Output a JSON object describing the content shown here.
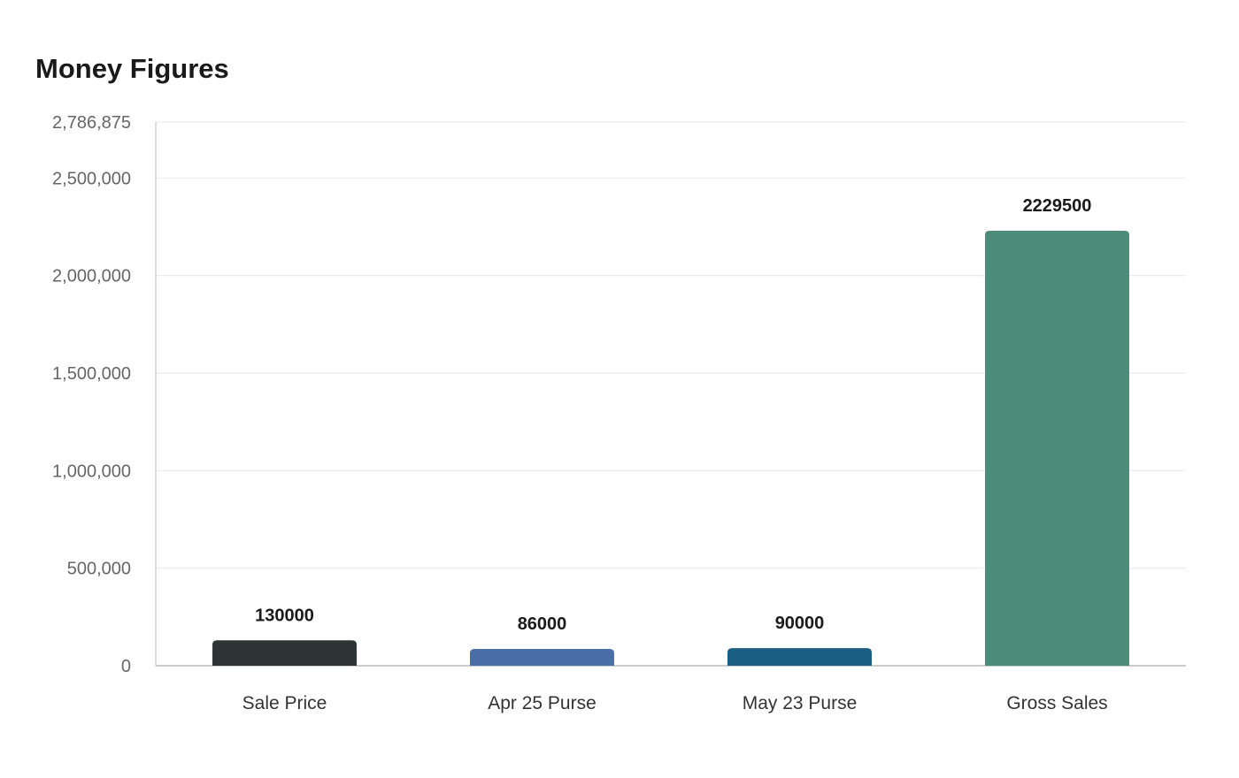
{
  "chart_data": {
    "type": "bar",
    "title": "Money Figures",
    "xlabel": "",
    "ylabel": "",
    "categories": [
      "Sale Price",
      "Apr 25 Purse",
      "May 23 Purse",
      "Gross Sales"
    ],
    "values": [
      130000,
      86000,
      90000,
      2229500
    ],
    "value_labels": [
      "130000",
      "86000",
      "90000",
      "2229500"
    ],
    "colors": [
      "#2e3336",
      "#4a6ea8",
      "#1a5e84",
      "#4c8c79"
    ],
    "ylim": [
      0,
      2786875
    ],
    "yticks": [
      0,
      500000,
      1000000,
      1500000,
      2000000,
      2500000,
      2786875
    ],
    "ytick_labels": [
      "0",
      "500,000",
      "1,000,000",
      "1,500,000",
      "2,000,000",
      "2,500,000",
      "2,786,875"
    ],
    "grid": true,
    "legend": "none"
  }
}
